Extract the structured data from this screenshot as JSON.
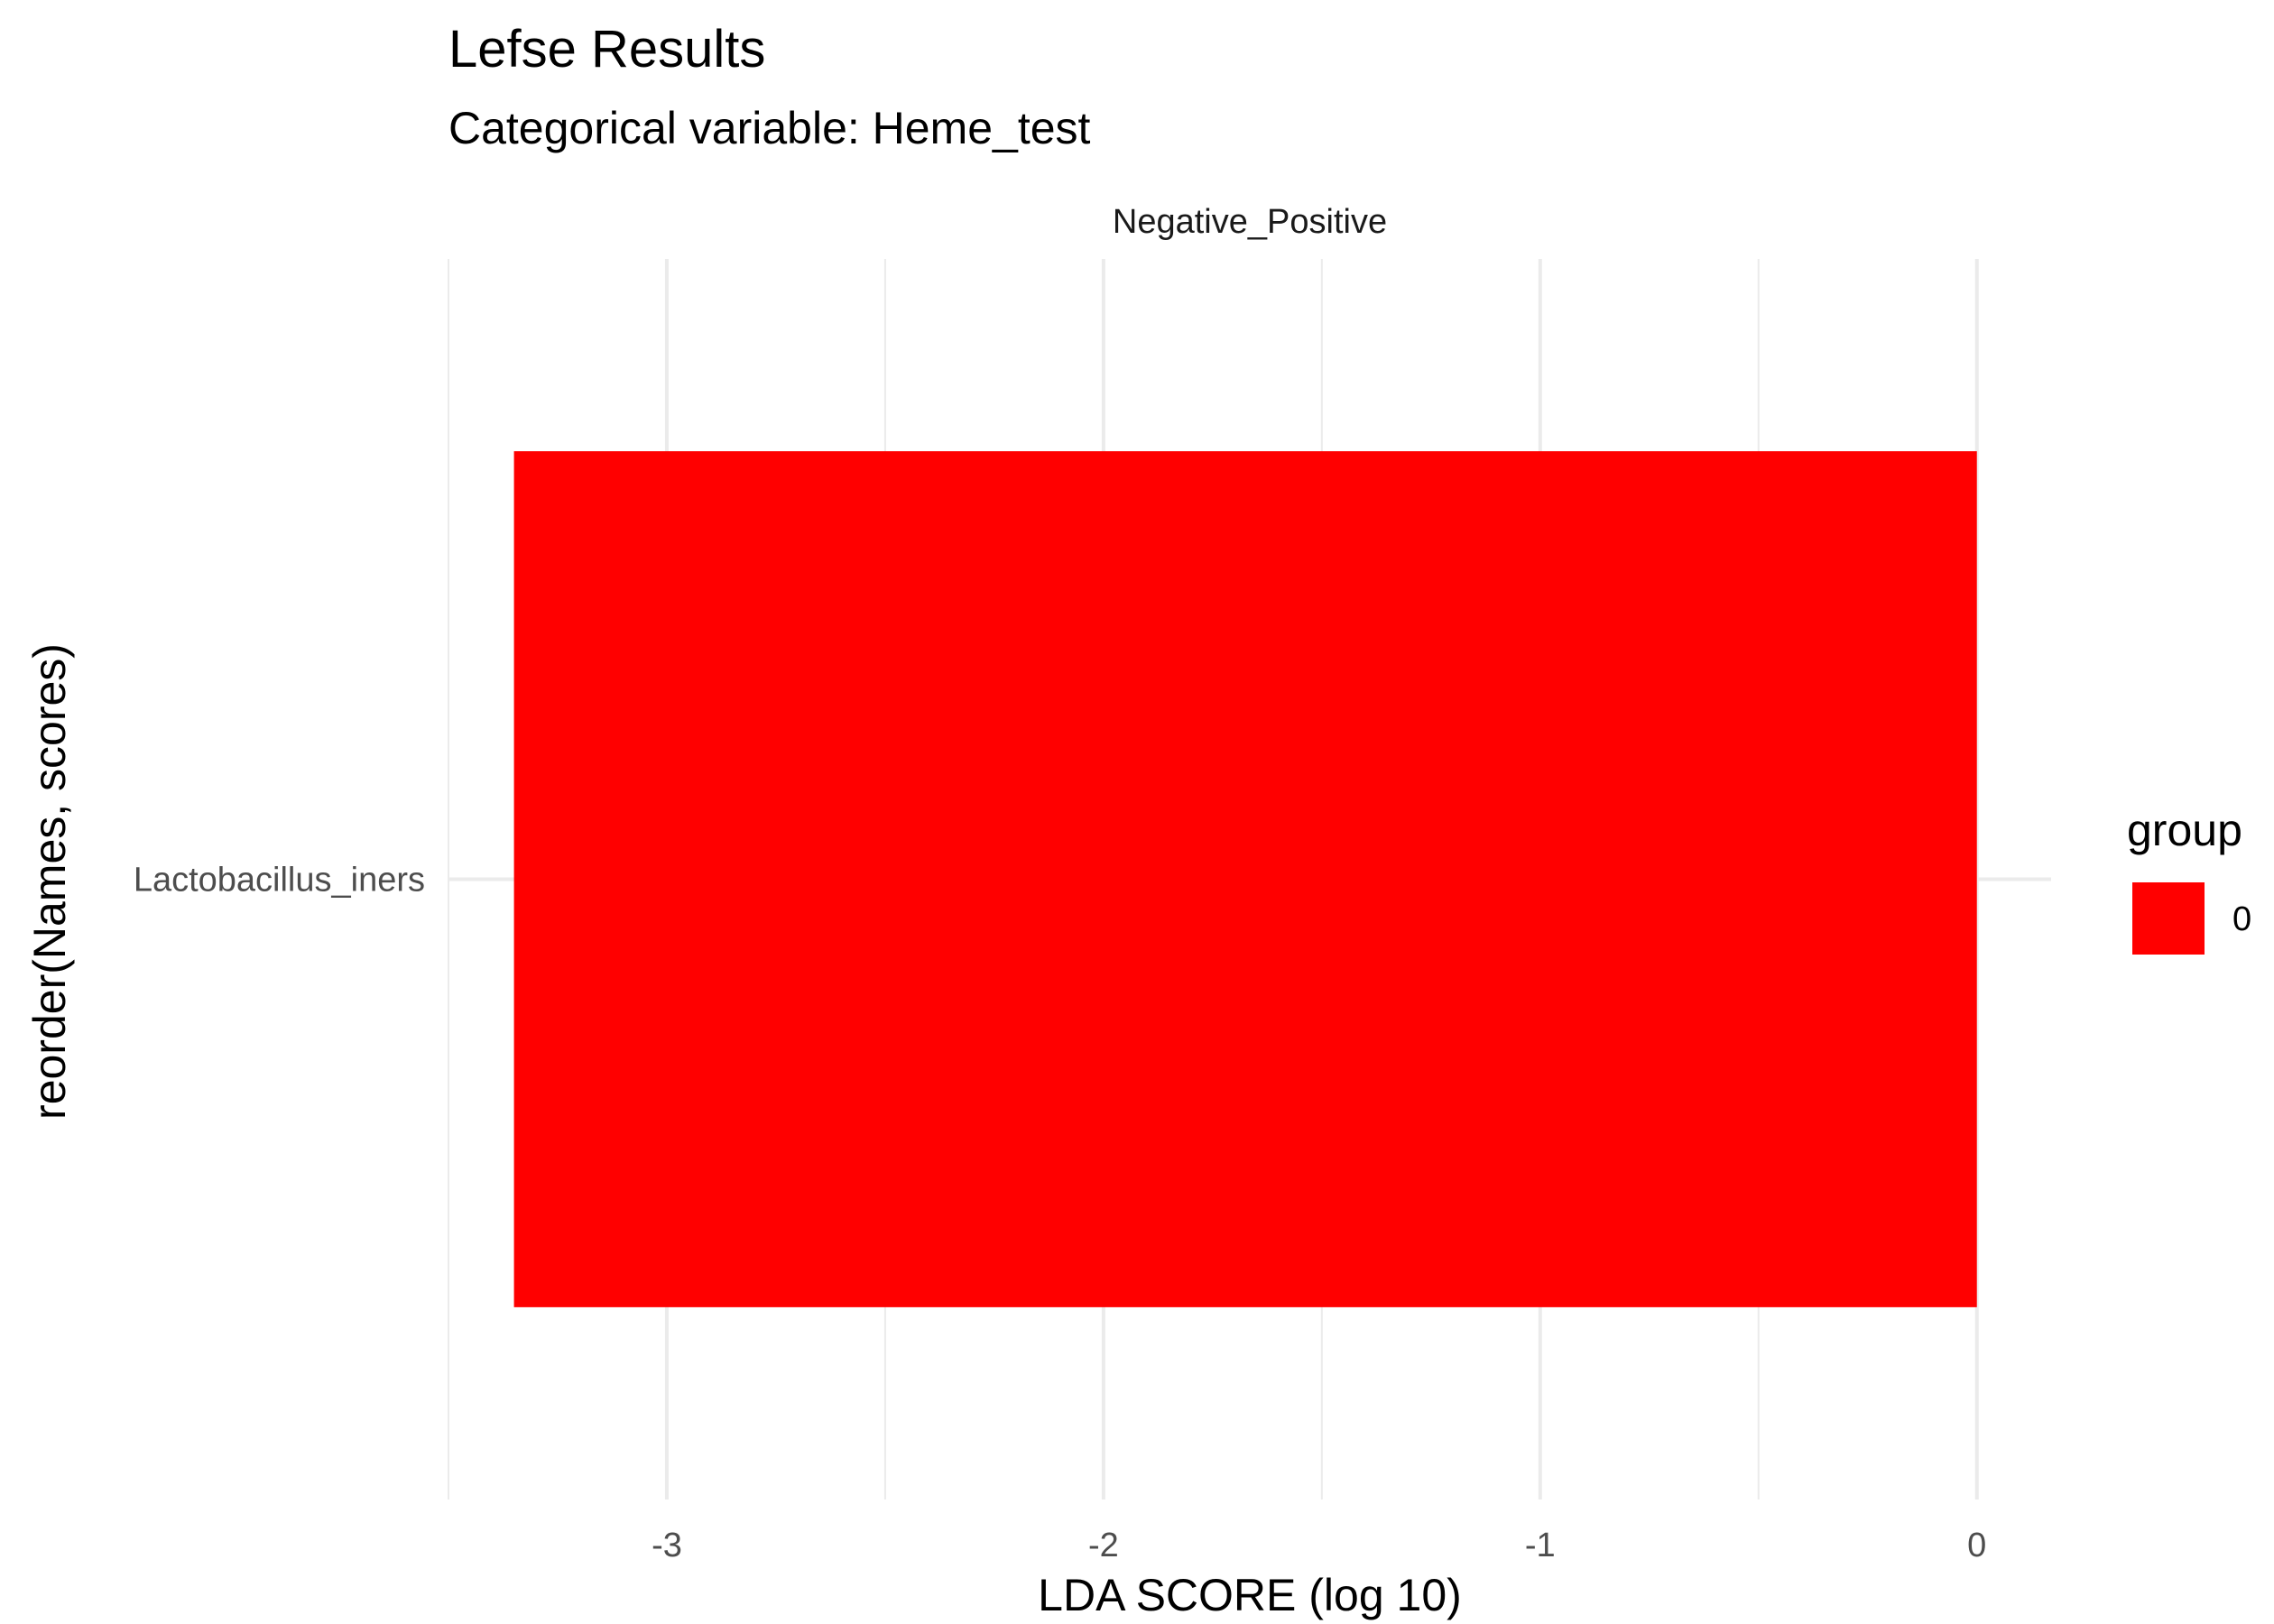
{
  "chart_data": {
    "type": "bar",
    "orientation": "horizontal",
    "title": "Lefse Results",
    "subtitle": "Categorical variable: Heme_test",
    "facet_label": "Negative_Positive",
    "xlabel": "LDA SCORE (log 10)",
    "ylabel": "reorder(Names, scores)",
    "categories": [
      "Lactobacillus_iners"
    ],
    "series": [
      {
        "name": "0",
        "values": [
          -3.35
        ],
        "color": "#FF0000"
      }
    ],
    "x_ticks": [
      -3,
      -2,
      -1,
      0
    ],
    "xlim": [
      -3.5,
      0.17
    ],
    "grid": true,
    "legend": {
      "title": "group",
      "position": "right",
      "entries": [
        {
          "label": "0",
          "color": "#FF0000"
        }
      ]
    },
    "colors": {
      "background": "#FFFFFF",
      "grid": "#EBEBEB",
      "bar": "#FF0000"
    }
  }
}
